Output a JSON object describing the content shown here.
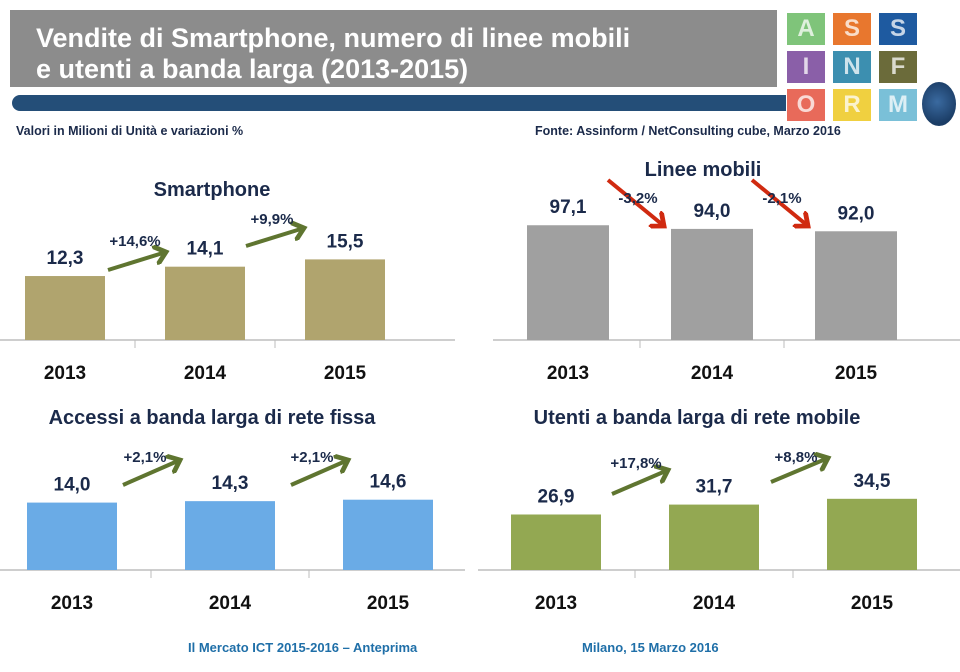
{
  "header": {
    "title_line1": "Vendite di Smartphone, numero di linee mobili",
    "title_line2": "e utenti a banda larga (2013-2015)"
  },
  "subtitle_left": "Valori in Milioni di Unità e variazioni %",
  "source": "Fonte: Assinform / NetConsulting cube, Marzo 2016",
  "footer": {
    "left": "Il Mercato ICT 2015-2016 – Anteprima",
    "right": "Milano, 15 Marzo 2016"
  },
  "logo": {
    "letters": [
      "A",
      "S",
      "S",
      "I",
      "N",
      "F",
      "O",
      "R",
      "M"
    ]
  },
  "chart_data": [
    {
      "type": "bar",
      "title": "Smartphone",
      "categories": [
        "2013",
        "2014",
        "2015"
      ],
      "values": [
        12.3,
        14.1,
        15.5
      ],
      "value_labels": [
        "12,3",
        "14,1",
        "15,5"
      ],
      "changes": [
        "+14,6%",
        "+9,9%"
      ],
      "color": "#b0a46e",
      "arrow_color": "#5f7530",
      "ylim": [
        0,
        25
      ]
    },
    {
      "type": "bar",
      "title": "Linee mobili",
      "categories": [
        "2013",
        "2014",
        "2015"
      ],
      "values": [
        97.1,
        94.0,
        92.0
      ],
      "value_labels": [
        "97,1",
        "94,0",
        "92,0"
      ],
      "changes": [
        "-3,2%",
        "-2,1%"
      ],
      "color": "#a0a0a0",
      "arrow_color": "#d02a10",
      "ylim": [
        0,
        110
      ]
    },
    {
      "type": "bar",
      "title": "Accessi a banda larga di rete fissa",
      "categories": [
        "2013",
        "2014",
        "2015"
      ],
      "values": [
        14.0,
        14.3,
        14.6
      ],
      "value_labels": [
        "14,0",
        "14,3",
        "14,6"
      ],
      "changes": [
        "+2,1%",
        "+2,1%"
      ],
      "color": "#6aabe6",
      "arrow_color": "#5f7530",
      "ylim": [
        0,
        27
      ]
    },
    {
      "type": "bar",
      "title": "Utenti a banda larga di rete mobile",
      "categories": [
        "2013",
        "2014",
        "2015"
      ],
      "values": [
        26.9,
        31.7,
        34.5
      ],
      "value_labels": [
        "26,9",
        "31,7",
        "34,5"
      ],
      "changes": [
        "+17,8%",
        "+8,8%"
      ],
      "color": "#93a852",
      "arrow_color": "#5f7530",
      "ylim": [
        0,
        63
      ]
    }
  ]
}
